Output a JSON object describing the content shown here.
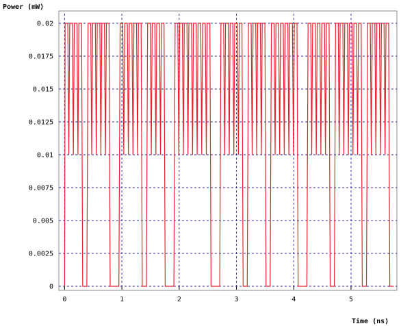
{
  "chart_data": {
    "type": "line",
    "title": "",
    "ylabel": "Power (mW)",
    "xlabel": "Time (ns)",
    "xlim": [
      -0.1,
      5.8
    ],
    "ylim": [
      0,
      0.02
    ],
    "y_ticks": [
      "0",
      "0.0025",
      "0.005",
      "0.0075",
      "0.01",
      "0.0125",
      "0.015",
      "0.0175",
      "0.02"
    ],
    "x_ticks": [
      "0",
      "1",
      "2",
      "3",
      "4",
      "5"
    ],
    "grid": true,
    "grid_style": "dashed",
    "grid_color": "#3333aa",
    "line_color": "#e8202a",
    "series": [
      {
        "bits": [
          1,
          1,
          1,
          1,
          0,
          1,
          1,
          1,
          1,
          1,
          0,
          0,
          1,
          1,
          1,
          1,
          1,
          0,
          1,
          1,
          1,
          1,
          0,
          0,
          1,
          1,
          1,
          1,
          1,
          1,
          1,
          1,
          0,
          0,
          1,
          1,
          1,
          1,
          1,
          0,
          1,
          1,
          1,
          1,
          0,
          1,
          1,
          1,
          1,
          1,
          1,
          0,
          0,
          1,
          1,
          1,
          1,
          1,
          0,
          1,
          1,
          1,
          1,
          1,
          1,
          0,
          1,
          1,
          1,
          1,
          1,
          0
        ],
        "x_start": 0.0,
        "bit_period": 0.08,
        "high": 0.02,
        "mid": 0.01,
        "low": 0.0
      }
    ]
  }
}
